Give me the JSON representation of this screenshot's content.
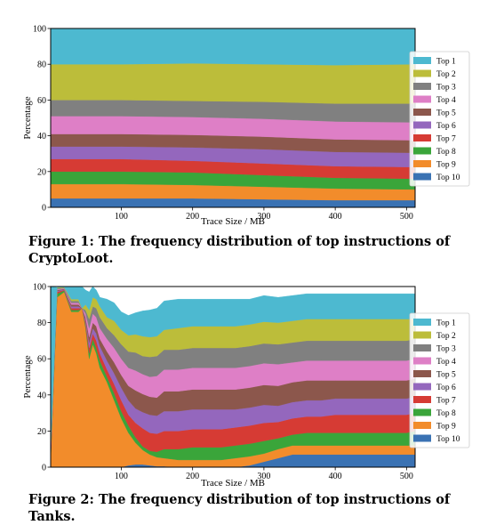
{
  "colors": {
    "Top 1": "#4db9d0",
    "Top 2": "#bcbd3a",
    "Top 3": "#808080",
    "Top 4": "#de7fc6",
    "Top 5": "#8c574c",
    "Top 6": "#9467bd",
    "Top 7": "#d63b34",
    "Top 8": "#3aa53a",
    "Top 9": "#f28c2b",
    "Top 10": "#3a72b3"
  },
  "captions": {
    "fig1": "Figure 1: The frequency distribution of top instructions of CryptoLoot.",
    "fig2": "Figure 2: The frequency distribution of top instructions of Tanks."
  },
  "chart_data": [
    {
      "type": "area",
      "stacked": true,
      "xlabel": "Trace Size / MB",
      "ylabel": "Percentage",
      "xlim": [
        1,
        512
      ],
      "ylim": [
        0,
        100
      ],
      "xticks": [
        100,
        200,
        300,
        400,
        500
      ],
      "yticks": [
        0,
        20,
        40,
        60,
        80,
        100
      ],
      "legend": "right",
      "x": [
        1,
        100,
        200,
        300,
        400,
        512
      ],
      "series": [
        {
          "name": "Top 10",
          "values": [
            5,
            5,
            5,
            4.5,
            4,
            4
          ]
        },
        {
          "name": "Top 9",
          "values": [
            8,
            8,
            7.5,
            7,
            6.5,
            6
          ]
        },
        {
          "name": "Top 8",
          "values": [
            7,
            7,
            7,
            6.5,
            6,
            6
          ]
        },
        {
          "name": "Top 7",
          "values": [
            7,
            7,
            6.5,
            6.5,
            6.5,
            6.5
          ]
        },
        {
          "name": "Top 6",
          "values": [
            7,
            7,
            7.5,
            8,
            8,
            8
          ]
        },
        {
          "name": "Top 5",
          "values": [
            7,
            7,
            7,
            7,
            7,
            7
          ]
        },
        {
          "name": "Top 4",
          "values": [
            10,
            10,
            10,
            10,
            10,
            10
          ]
        },
        {
          "name": "Top 3",
          "values": [
            9,
            9,
            9,
            9.5,
            10,
            10.5
          ]
        },
        {
          "name": "Top 2",
          "values": [
            20,
            20,
            21,
            21,
            21.5,
            22
          ]
        },
        {
          "name": "Top 1",
          "values": [
            20,
            20,
            19.5,
            20,
            20.5,
            20
          ]
        }
      ]
    },
    {
      "type": "area",
      "stacked": true,
      "xlabel": "Trace Size / MB",
      "ylabel": "Percentage",
      "xlim": [
        1,
        512
      ],
      "ylim": [
        0,
        100
      ],
      "xticks": [
        100,
        200,
        300,
        400,
        500
      ],
      "yticks": [
        0,
        20,
        40,
        60,
        80,
        100
      ],
      "legend": "right",
      "x": [
        1,
        10,
        20,
        30,
        40,
        45,
        50,
        55,
        60,
        65,
        70,
        80,
        90,
        100,
        110,
        120,
        130,
        140,
        150,
        160,
        180,
        200,
        220,
        240,
        260,
        280,
        300,
        320,
        340,
        360,
        380,
        400,
        420,
        440,
        460,
        480,
        500,
        512
      ],
      "series": [
        {
          "name": "Top 10",
          "values": [
            0,
            0,
            0,
            0,
            0,
            0,
            0,
            0,
            0,
            0,
            0,
            0,
            0,
            0,
            1,
            1.5,
            1.5,
            1,
            0.5,
            0.5,
            0,
            0,
            0,
            0,
            0,
            1,
            3,
            5,
            7,
            7,
            7,
            7,
            7,
            7,
            7,
            7,
            7,
            7
          ]
        },
        {
          "name": "Top 9",
          "values": [
            4,
            94,
            97,
            86,
            86,
            88,
            77,
            60,
            68,
            63,
            55,
            47,
            37,
            27,
            18,
            12,
            8,
            6,
            5,
            4.5,
            4,
            4,
            4,
            4,
            5,
            5,
            4.5,
            5,
            5,
            5,
            5,
            5,
            5,
            5,
            5,
            5,
            5,
            5
          ]
        },
        {
          "name": "Top 8",
          "values": [
            1,
            2,
            0.8,
            1,
            1,
            0,
            1.5,
            3,
            3,
            3,
            4,
            3,
            4,
            4,
            4,
            3,
            2,
            2,
            3,
            5,
            6,
            7,
            7,
            7,
            7,
            7,
            7,
            6,
            6,
            7,
            7,
            7,
            7,
            7,
            7,
            7,
            7,
            8
          ]
        },
        {
          "name": "Top 7",
          "values": [
            1,
            1,
            0.3,
            1,
            1,
            0,
            1.5,
            3,
            3,
            4,
            4,
            4,
            5,
            6,
            6,
            8,
            10,
            10,
            10,
            10,
            10,
            10,
            10,
            10,
            10,
            10,
            10,
            9,
            9,
            9,
            9,
            10,
            10,
            10,
            10,
            10,
            10,
            10
          ]
        },
        {
          "name": "Top 6",
          "values": [
            1,
            0.5,
            0.3,
            1,
            1,
            0,
            1.5,
            3,
            3,
            4,
            4,
            5,
            6,
            7,
            8,
            8,
            9,
            10,
            10,
            11,
            11,
            11,
            11,
            11,
            10,
            10,
            10,
            9,
            9,
            9,
            9,
            9,
            9,
            9,
            9,
            9,
            9,
            9
          ]
        },
        {
          "name": "Top 5",
          "values": [
            1,
            0.5,
            0.3,
            1,
            1,
            0,
            1.5,
            3,
            3,
            4,
            4,
            5,
            6,
            7,
            8,
            10,
            10,
            10,
            10,
            11,
            11,
            11,
            11,
            11,
            11,
            11,
            11,
            11,
            11,
            11,
            11,
            10,
            10,
            10,
            10,
            10,
            10,
            10
          ]
        },
        {
          "name": "Top 4",
          "values": [
            1,
            0.5,
            0.3,
            1,
            1,
            0,
            2,
            5,
            5,
            5,
            6,
            7,
            8,
            9,
            10,
            11,
            11,
            11,
            12,
            12,
            12,
            12,
            12,
            12,
            12,
            12,
            12,
            12,
            11,
            11,
            11,
            11,
            11,
            11,
            11,
            11,
            11,
            11
          ]
        },
        {
          "name": "Top 3",
          "values": [
            1,
            0.5,
            0.3,
            1,
            1,
            0,
            2,
            5,
            4,
            5,
            6,
            6,
            7,
            8,
            9,
            10,
            10,
            11,
            11,
            11,
            11,
            11,
            11,
            11,
            11,
            11,
            11,
            11,
            11,
            11,
            11,
            11,
            11,
            11,
            11,
            11,
            11,
            11
          ]
        },
        {
          "name": "Top 2",
          "values": [
            1,
            0.5,
            0.3,
            1,
            1,
            0,
            3,
            5,
            5,
            5,
            6,
            6,
            8,
            8,
            9,
            10,
            11,
            11,
            11,
            11,
            12,
            12,
            12,
            12,
            12,
            12,
            12,
            12,
            12,
            12,
            12,
            12,
            12,
            12,
            12,
            12,
            12,
            11
          ]
        },
        {
          "name": "Top 1",
          "values": [
            89,
            0,
            0.5,
            7,
            7,
            12,
            8,
            10,
            7,
            5,
            5,
            10,
            10,
            10,
            11,
            12,
            14,
            15,
            15.5,
            16,
            16,
            15,
            15,
            15,
            15,
            14,
            14.5,
            14,
            14,
            14,
            14,
            14,
            14,
            14,
            14,
            14,
            14,
            14
          ]
        }
      ]
    }
  ]
}
